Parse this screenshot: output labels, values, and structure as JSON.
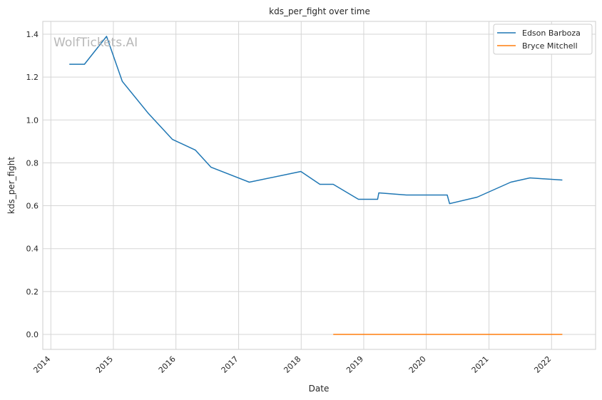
{
  "watermark": "WolfTickets.AI",
  "chart_data": {
    "type": "line",
    "title": "kds_per_fight over time",
    "xlabel": "Date",
    "ylabel": "kds_per_fight",
    "xlim": [
      "2013-11-15",
      "2022-09-15"
    ],
    "ylim": [
      -0.07,
      1.46
    ],
    "xticks": [
      "2014",
      "2015",
      "2016",
      "2017",
      "2018",
      "2019",
      "2020",
      "2021",
      "2022"
    ],
    "yticks": [
      "0.0",
      "0.2",
      "0.4",
      "0.6",
      "0.8",
      "1.0",
      "1.2",
      "1.4"
    ],
    "ytick_values": [
      0.0,
      0.2,
      0.4,
      0.6,
      0.8,
      1.0,
      1.2,
      1.4
    ],
    "grid": true,
    "legend": "top-right",
    "series": [
      {
        "name": "Edson Barboza",
        "color": "#1f77b4",
        "points": [
          [
            "2014-04-19",
            1.26
          ],
          [
            "2014-07-16",
            1.26
          ],
          [
            "2014-11-22",
            1.39
          ],
          [
            "2015-02-22",
            1.18
          ],
          [
            "2015-07-25",
            1.03
          ],
          [
            "2015-12-11",
            0.91
          ],
          [
            "2016-04-23",
            0.86
          ],
          [
            "2016-07-23",
            0.78
          ],
          [
            "2017-03-04",
            0.71
          ],
          [
            "2017-12-30",
            0.76
          ],
          [
            "2018-04-20",
            0.7
          ],
          [
            "2018-07-07",
            0.7
          ],
          [
            "2018-12-01",
            0.63
          ],
          [
            "2019-03-23",
            0.63
          ],
          [
            "2019-03-30",
            0.66
          ],
          [
            "2019-09-07",
            0.65
          ],
          [
            "2020-05-02",
            0.65
          ],
          [
            "2020-05-16",
            0.61
          ],
          [
            "2020-10-24",
            0.64
          ],
          [
            "2021-05-08",
            0.71
          ],
          [
            "2021-08-28",
            0.73
          ],
          [
            "2022-03-05",
            0.72
          ]
        ]
      },
      {
        "name": "Bryce Mitchell",
        "color": "#ff7f0e",
        "points": [
          [
            "2018-07-07",
            0.0
          ],
          [
            "2022-03-05",
            0.0
          ]
        ]
      }
    ]
  }
}
